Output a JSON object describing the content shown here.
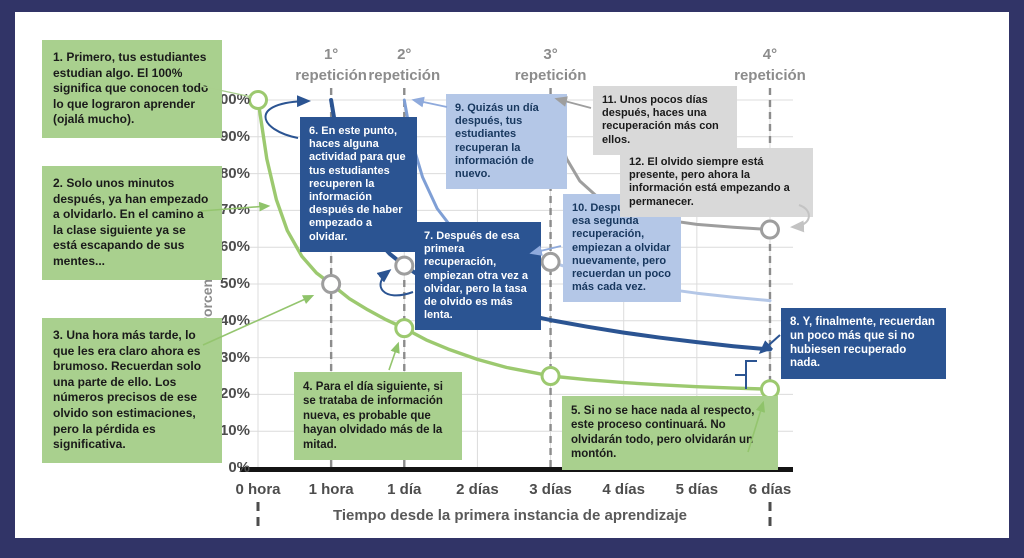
{
  "frame": {
    "border_color": "#313467",
    "background": "#ffffff"
  },
  "chart_data": {
    "type": "line",
    "title": "",
    "xlabel": "Tiempo desde la primera instancia de aprendizaje",
    "ylabel": "Porcentaje de retención",
    "x_categories": [
      "0 hora",
      "1 hora",
      "1 día",
      "2 días",
      "3 días",
      "4 días",
      "5 días",
      "6 días"
    ],
    "y_ticks": [
      "100%",
      "90%",
      "80%",
      "70%",
      "60%",
      "50%",
      "40%",
      "30%",
      "20%",
      "10%",
      "0%"
    ],
    "ylim": [
      0,
      100
    ],
    "grid": true,
    "repetition_markers": [
      {
        "label_ordinal": "1°",
        "label_word": "repetición",
        "at": "1 hora",
        "x_index": 1
      },
      {
        "label_ordinal": "2°",
        "label_word": "repetición",
        "at": "1 día",
        "x_index": 2
      },
      {
        "label_ordinal": "3°",
        "label_word": "repetición",
        "at": "3 días",
        "x_index": 4
      },
      {
        "label_ordinal": "4°",
        "label_word": "repetición",
        "at": "6 días",
        "x_index": 7
      }
    ],
    "series": [
      {
        "name": "curva-olvido-sin-recuperacion",
        "color": "#9cc96f",
        "stroke_width": 3.4,
        "x": [
          "0 hora",
          "1 hora",
          "1 día",
          "2 días",
          "3 días",
          "4 días",
          "5 días",
          "6 días"
        ],
        "values": [
          100,
          50,
          38,
          29.5,
          25,
          23.2,
          22.1,
          21.4
        ],
        "curve_points": [
          [
            0,
            100
          ],
          [
            0.12,
            84
          ],
          [
            0.25,
            73
          ],
          [
            0.4,
            64.5
          ],
          [
            0.6,
            57.5
          ],
          [
            0.8,
            53
          ],
          [
            1,
            50
          ],
          [
            1.25,
            46
          ],
          [
            1.5,
            43
          ],
          [
            1.75,
            40.3
          ],
          [
            2,
            38
          ],
          [
            2.3,
            34.8
          ],
          [
            2.6,
            32.3
          ],
          [
            3,
            29.5
          ],
          [
            3.4,
            27.3
          ],
          [
            3.8,
            25.8
          ],
          [
            4,
            25
          ],
          [
            4.5,
            24
          ],
          [
            5,
            23.2
          ],
          [
            5.5,
            22.6
          ],
          [
            6,
            22.1
          ],
          [
            6.5,
            21.7
          ],
          [
            7,
            21.4
          ]
        ],
        "dot_points": [
          [
            0,
            100
          ],
          [
            2,
            38
          ],
          [
            4,
            25
          ],
          [
            7,
            21.4
          ]
        ]
      },
      {
        "name": "retencion-tras-1a-recuperacion",
        "color": "#2b5492",
        "stroke_width": 4,
        "x": [
          "1 hora",
          "1 día",
          "2 días",
          "3 días",
          "4 días",
          "5 días",
          "6 días"
        ],
        "values": [
          100,
          55,
          45,
          40.2,
          36.8,
          34.2,
          32.2
        ],
        "curve_points": [
          [
            1,
            100
          ],
          [
            1.1,
            88
          ],
          [
            1.22,
            78.5
          ],
          [
            1.38,
            70
          ],
          [
            1.58,
            63
          ],
          [
            1.8,
            58.2
          ],
          [
            2,
            55
          ],
          [
            2.3,
            51
          ],
          [
            2.6,
            48
          ],
          [
            3,
            45
          ],
          [
            3.5,
            42.3
          ],
          [
            4,
            40.2
          ],
          [
            4.5,
            38.4
          ],
          [
            5,
            36.8
          ],
          [
            5.5,
            35.4
          ],
          [
            6,
            34.2
          ],
          [
            6.5,
            33.1
          ],
          [
            7,
            32.2
          ]
        ],
        "dot_points": []
      },
      {
        "name": "retencion-tras-2a-recuperacion",
        "color": "#7f9fd5",
        "stroke_width": 3,
        "x": [
          "1 día",
          "2 días",
          "3 días"
        ],
        "values": [
          100,
          59.5,
          56
        ],
        "curve_points": [
          [
            2,
            100
          ],
          [
            2.1,
            89
          ],
          [
            2.25,
            79
          ],
          [
            2.45,
            70.5
          ],
          [
            2.7,
            64
          ],
          [
            3,
            59.5
          ],
          [
            3.5,
            57.3
          ],
          [
            4,
            56
          ]
        ],
        "dot_points": []
      },
      {
        "name": "retencion-tras-2a-recuperacion-continuacion",
        "color": "#b4c7e7",
        "stroke_width": 3,
        "x": [
          "3 días",
          "4 días",
          "5 días",
          "6 días"
        ],
        "values": [
          56,
          50.5,
          47.5,
          45.5
        ],
        "curve_points": [
          [
            4,
            56
          ],
          [
            4.4,
            53.5
          ],
          [
            4.8,
            51.5
          ],
          [
            5.2,
            49.9
          ],
          [
            5.6,
            48.6
          ],
          [
            6,
            47.5
          ],
          [
            6.5,
            46.4
          ],
          [
            7,
            45.5
          ]
        ],
        "dot_points": []
      },
      {
        "name": "retencion-tras-3a-recuperacion",
        "color": "#9e9e9e",
        "stroke_width": 3,
        "x": [
          "3 días",
          "4 días",
          "5 días",
          "6 días"
        ],
        "values": [
          100,
          70,
          66.2,
          64.8
        ],
        "curve_points": [
          [
            4,
            100
          ],
          [
            4.1,
            91
          ],
          [
            4.22,
            84
          ],
          [
            4.4,
            78
          ],
          [
            4.65,
            73.5
          ],
          [
            5,
            70
          ],
          [
            5.5,
            67.6
          ],
          [
            6,
            66.2
          ],
          [
            6.5,
            65.4
          ],
          [
            7,
            64.8
          ]
        ],
        "dot_points": []
      }
    ],
    "intersection_dots": {
      "meaning": "nivel de retención en el momento de cada repetición",
      "color": "#9e9e9e",
      "points": [
        [
          1,
          50
        ],
        [
          2,
          55
        ],
        [
          4,
          56
        ],
        [
          7,
          64.8
        ]
      ]
    }
  },
  "callouts": [
    {
      "num": "1.",
      "style": "green",
      "text": "Primero, tus estudiantes estudian algo. El 100% significa que conocen todo lo que lograron aprender (ojalá mucho)."
    },
    {
      "num": "2.",
      "style": "green",
      "text": "Solo unos minutos después, ya han empezado a olvidarlo. En el camino a la clase siguiente ya se está escapando de sus mentes..."
    },
    {
      "num": "3.",
      "style": "green",
      "text": "Una hora más tarde, lo que les era claro ahora es brumoso. Recuerdan solo una parte de ello. Los números precisos de ese olvido son estimaciones, pero la pérdida es significativa."
    },
    {
      "num": "4.",
      "style": "green",
      "text": "Para el día siguiente, si se trataba de información nueva, es probable que hayan olvidado más de la mitad."
    },
    {
      "num": "5.",
      "style": "green",
      "text": "Si no se hace nada al respecto, este proceso continuará. No olvidarán todo, pero olvidarán un montón."
    },
    {
      "num": "6.",
      "style": "navy",
      "text": "En este punto, haces alguna actividad para que tus estudiantes recuperen la información después de haber empezado a olvidar."
    },
    {
      "num": "7.",
      "style": "navy",
      "text": "Después de esa primera recuperación, empiezan otra vez a olvidar, pero la tasa de olvido es más lenta."
    },
    {
      "num": "8.",
      "style": "navy",
      "text": "Y, finalmente, recuerdan un poco más que si no hubiesen recuperado nada."
    },
    {
      "num": "9.",
      "style": "lblue",
      "text": "Quizás un día después, tus estudiantes recuperan la información de nuevo."
    },
    {
      "num": "10.",
      "style": "lblue",
      "text": "Después de esa segunda recuperación, empiezan a olvidar nuevamente, pero recuerdan un poco más cada vez."
    },
    {
      "num": "11.",
      "style": "gray",
      "text": "Unos pocos días después, haces una recuperación más con ellos."
    },
    {
      "num": "12.",
      "style": "gray",
      "text": "El olvido siempre está presente, pero ahora la información está empezando a permanecer."
    }
  ]
}
